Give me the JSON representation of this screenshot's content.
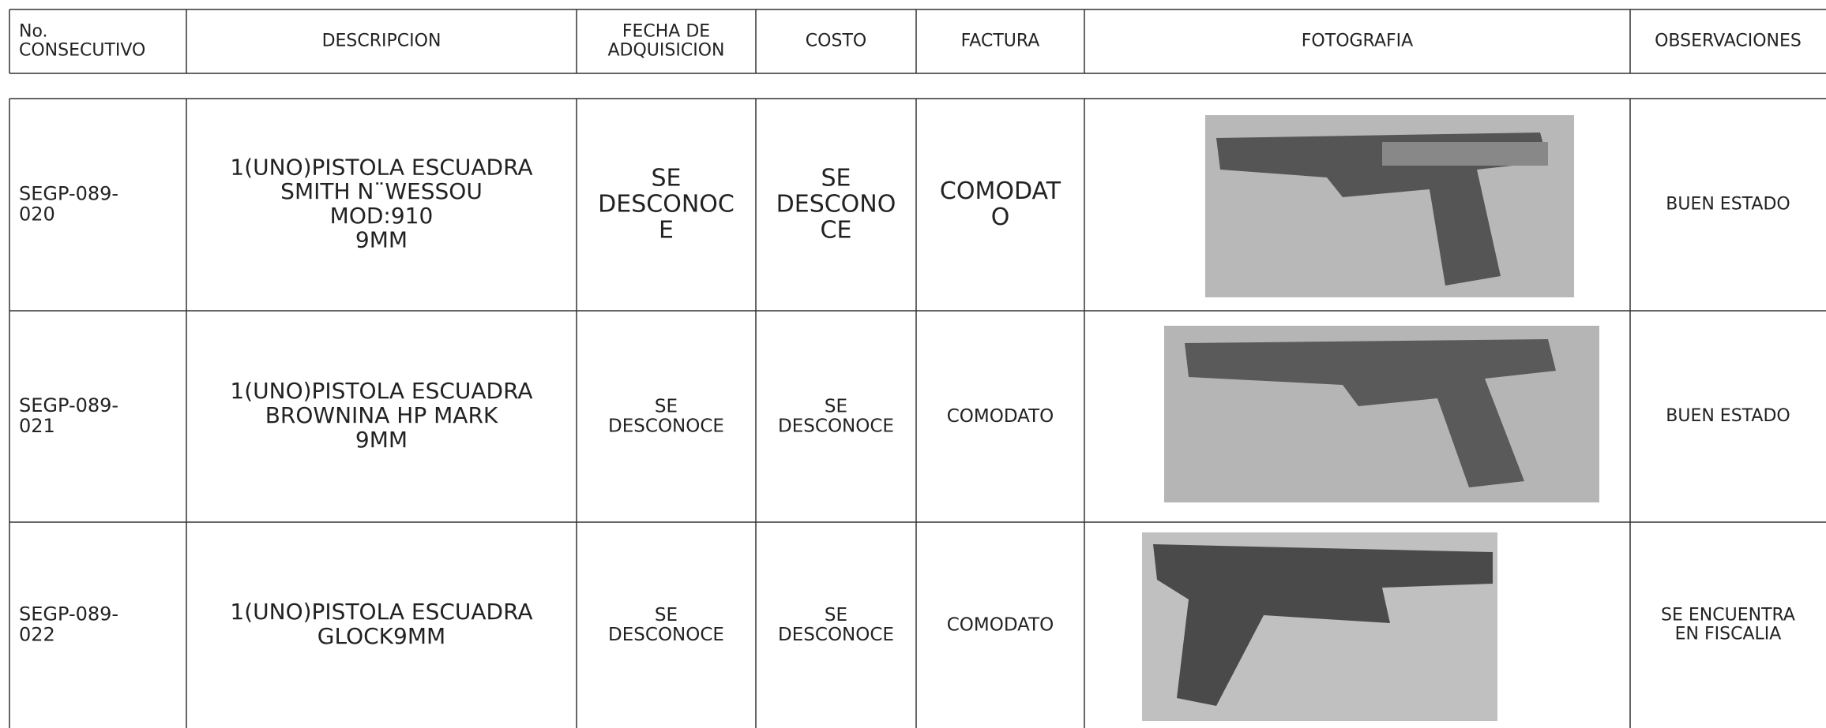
{
  "table": {
    "header": [
      [
        "No.",
        "CONSECUTIVO"
      ],
      [
        "DESCRIPCION"
      ],
      [
        "FECHA DE",
        "ADQUISICION"
      ],
      [
        "COSTO"
      ],
      [
        "FACTURA"
      ],
      [
        "FOTOGRAFIA"
      ],
      [
        "OBSERVACIONES"
      ]
    ],
    "rows": [
      [
        [
          "SEGP-089-",
          "020"
        ],
        [
          "1(UNO)PISTOLA ESCUADRA",
          "SMITH N¨WESSOU",
          "MOD:910",
          "9MM"
        ],
        [
          "SE",
          "DESCONOC",
          "E"
        ],
        [
          "SE",
          "DESCONO",
          "CE"
        ],
        [
          "COMODAT",
          "O"
        ],
        [],
        [
          "BUEN ESTADO"
        ]
      ],
      [
        [
          "SEGP-089-",
          "021"
        ],
        [
          "1(UNO)PISTOLA ESCUADRA",
          "BROWNINA HP MARK",
          "9MM"
        ],
        [
          "SE",
          "DESCONOCE"
        ],
        [
          "SE",
          "DESCONOCE"
        ],
        [
          "COMODATO"
        ],
        [],
        [
          "BUEN ESTADO"
        ]
      ],
      [
        [
          "SEGP-089-",
          "022"
        ],
        [
          "1(UNO)PISTOLA ESCUADRA",
          "GLOCK9MM"
        ],
        [
          "SE",
          "DESCONOCE"
        ],
        [
          "SE",
          "DESCONOCE"
        ],
        [
          "COMODATO"
        ],
        [],
        [
          "SE ENCUENTRA",
          "EN FISCALIA"
        ]
      ]
    ]
  }
}
